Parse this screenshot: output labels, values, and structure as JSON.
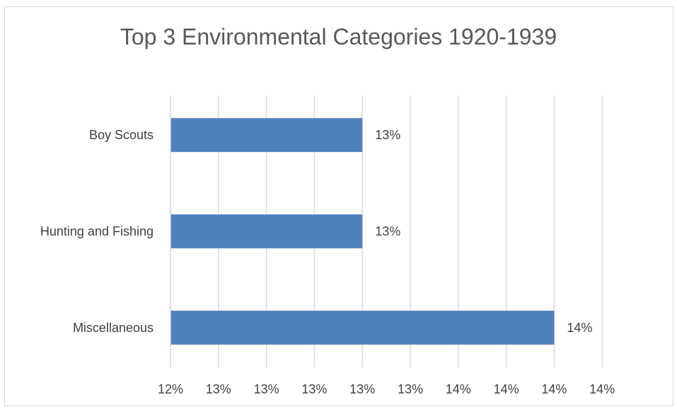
{
  "chart_data": {
    "type": "bar",
    "orientation": "horizontal",
    "title": "Top 3 Environmental Categories 1920-1939",
    "xlabel": "",
    "ylabel": "",
    "categories": [
      "Boy Scouts",
      "Hunting and Fishing",
      "Miscellaneous"
    ],
    "values": [
      13.15,
      13.15,
      13.95
    ],
    "data_labels": [
      "13%",
      "13%",
      "14%"
    ],
    "xlim": [
      12.35,
      14.35
    ],
    "x_ticks": [
      12.35,
      12.55,
      12.75,
      12.95,
      13.15,
      13.35,
      13.55,
      13.75,
      13.95,
      14.15
    ],
    "x_tick_labels": [
      "12%",
      "13%",
      "13%",
      "13%",
      "13%",
      "13%",
      "14%",
      "14%",
      "14%",
      "14%"
    ],
    "grid": "vertical",
    "legend": "none",
    "bar_color": "#4f81bd"
  }
}
